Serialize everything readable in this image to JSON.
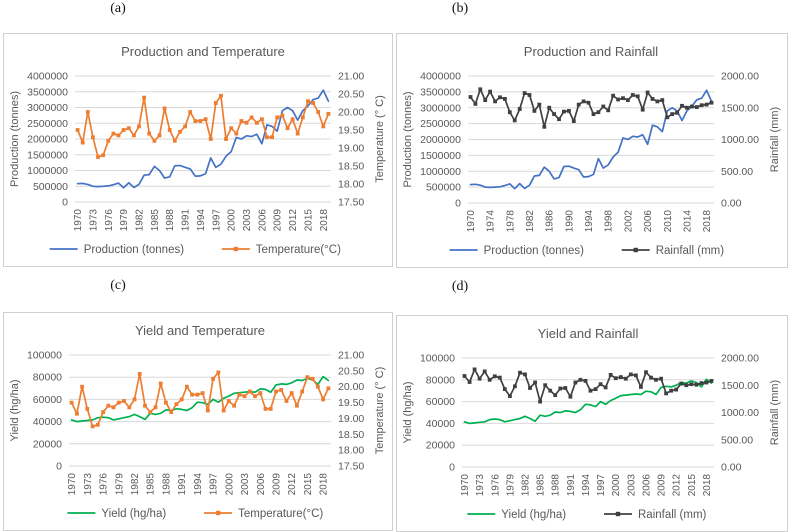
{
  "figure_labels": {
    "a": "(a)",
    "b": "(b)",
    "c": "(c)",
    "d": "(d)"
  },
  "colors": {
    "production": "#4472C4",
    "temperature": "#ED7D31",
    "yield": "#00B050",
    "rainfall": "#404040",
    "grid": "#D9D9D9",
    "text": "#595959",
    "panel_border": "#CFCFCF"
  },
  "years": [
    1970,
    1971,
    1972,
    1973,
    1974,
    1975,
    1976,
    1977,
    1978,
    1979,
    1980,
    1981,
    1982,
    1983,
    1984,
    1985,
    1986,
    1987,
    1988,
    1989,
    1990,
    1991,
    1992,
    1993,
    1994,
    1995,
    1996,
    1997,
    1998,
    1999,
    2000,
    2001,
    2002,
    2003,
    2004,
    2005,
    2006,
    2007,
    2008,
    2009,
    2010,
    2011,
    2012,
    2013,
    2014,
    2015,
    2016,
    2017,
    2018,
    2019
  ],
  "chart_data": [
    {
      "type": "line",
      "title": "Production and Temperature",
      "x_ticks": [
        1970,
        1973,
        1976,
        1979,
        1982,
        1985,
        1988,
        1991,
        1994,
        1997,
        2000,
        2003,
        2006,
        2009,
        2012,
        2015,
        2018
      ],
      "left_axis": {
        "label": "Production (tonnes)",
        "min": 0,
        "max": 4000000,
        "step": 500000,
        "decimals": 0
      },
      "right_axis": {
        "label": "Temperature (° C)",
        "min": 17.5,
        "max": 21,
        "step": 0.5,
        "decimals": 2
      },
      "legend_position": "bottom",
      "grid": true,
      "series": [
        {
          "name": "Production (tonnes)",
          "axis": "left",
          "color_key": "production",
          "marker": false,
          "values": [
            580000,
            590000,
            560000,
            500000,
            490000,
            500000,
            510000,
            550000,
            600000,
            450000,
            610000,
            460000,
            560000,
            850000,
            870000,
            1130000,
            1000000,
            760000,
            800000,
            1150000,
            1160000,
            1100000,
            1050000,
            820000,
            830000,
            900000,
            1400000,
            1100000,
            1200000,
            1450000,
            1600000,
            2050000,
            2000000,
            2100000,
            2080000,
            2150000,
            1850000,
            2450000,
            2400000,
            2250000,
            2900000,
            3000000,
            2900000,
            2600000,
            2900000,
            3050000,
            3250000,
            3300000,
            3550000,
            3200000
          ]
        },
        {
          "name": "Temperature(°C)",
          "axis": "right",
          "color_key": "temperature",
          "marker": true,
          "values": [
            19.5,
            19.15,
            20.0,
            19.3,
            18.75,
            18.8,
            19.2,
            19.4,
            19.35,
            19.5,
            19.55,
            19.35,
            19.6,
            20.4,
            19.4,
            19.2,
            19.35,
            20.1,
            19.5,
            19.2,
            19.45,
            19.6,
            20.0,
            19.75,
            19.75,
            19.8,
            19.25,
            20.25,
            20.45,
            19.25,
            19.55,
            19.4,
            19.75,
            19.7,
            19.85,
            19.7,
            19.8,
            19.3,
            19.3,
            19.85,
            19.9,
            19.55,
            19.8,
            19.4,
            19.85,
            20.3,
            20.25,
            20.0,
            19.6,
            19.95
          ]
        }
      ]
    },
    {
      "type": "line",
      "title": "Production and Rainfall",
      "x_ticks": [
        1970,
        1974,
        1978,
        1982,
        1986,
        1990,
        1994,
        1998,
        2002,
        2006,
        2010,
        2014,
        2018
      ],
      "left_axis": {
        "label": "Production (tonnes)",
        "min": 0,
        "max": 4000000,
        "step": 500000,
        "decimals": 0
      },
      "right_axis": {
        "label": "Rainfall (mm)",
        "min": 0,
        "max": 2000,
        "step": 500,
        "decimals": 2
      },
      "legend_position": "bottom",
      "grid": true,
      "series": [
        {
          "name": "Production (tonnes)",
          "axis": "left",
          "color_key": "production",
          "marker": false,
          "values": [
            580000,
            590000,
            560000,
            500000,
            490000,
            500000,
            510000,
            550000,
            600000,
            450000,
            610000,
            460000,
            560000,
            850000,
            870000,
            1130000,
            1000000,
            760000,
            800000,
            1150000,
            1160000,
            1100000,
            1050000,
            820000,
            830000,
            900000,
            1400000,
            1100000,
            1200000,
            1450000,
            1600000,
            2050000,
            2000000,
            2100000,
            2080000,
            2150000,
            1850000,
            2450000,
            2400000,
            2250000,
            2900000,
            3000000,
            2900000,
            2600000,
            2900000,
            3050000,
            3250000,
            3300000,
            3550000,
            3200000
          ]
        },
        {
          "name": "Rainfall (mm)",
          "axis": "right",
          "color_key": "rainfall",
          "marker": true,
          "values": [
            1670,
            1560,
            1790,
            1620,
            1755,
            1600,
            1665,
            1640,
            1430,
            1300,
            1480,
            1730,
            1700,
            1450,
            1550,
            1200,
            1500,
            1400,
            1320,
            1440,
            1450,
            1290,
            1550,
            1600,
            1580,
            1400,
            1430,
            1520,
            1460,
            1690,
            1630,
            1650,
            1620,
            1700,
            1680,
            1470,
            1740,
            1640,
            1600,
            1620,
            1350,
            1400,
            1420,
            1530,
            1500,
            1520,
            1510,
            1540,
            1550,
            1580
          ]
        }
      ]
    },
    {
      "type": "line",
      "title": "Yield and Temperature",
      "x_ticks": [
        1970,
        1973,
        1976,
        1979,
        1982,
        1985,
        1988,
        1991,
        1994,
        1997,
        2000,
        2003,
        2006,
        2009,
        2012,
        2015,
        2018
      ],
      "left_axis": {
        "label": "Yield (hg/ha)",
        "min": 0,
        "max": 100000,
        "step": 20000,
        "decimals": 0
      },
      "right_axis": {
        "label": "Temperature (° C)",
        "min": 17.5,
        "max": 21,
        "step": 0.5,
        "decimals": 2
      },
      "legend_position": "bottom",
      "grid": true,
      "series": [
        {
          "name": "Yield (hg/ha)",
          "axis": "left",
          "color_key": "yield",
          "marker": false,
          "values": [
            41500,
            40000,
            40500,
            41000,
            41500,
            43500,
            44000,
            43500,
            41500,
            42500,
            43500,
            44500,
            46500,
            44500,
            42000,
            47500,
            46500,
            47500,
            50500,
            50000,
            51500,
            51000,
            50000,
            52500,
            57500,
            57000,
            55500,
            60000,
            57500,
            61000,
            63000,
            65500,
            66000,
            66500,
            67000,
            66500,
            69500,
            69000,
            66500,
            73000,
            74000,
            73500,
            75000,
            77500,
            77000,
            79000,
            77500,
            73500,
            80500,
            77000
          ]
        },
        {
          "name": "Temperature(°C)",
          "axis": "right",
          "color_key": "temperature",
          "marker": true,
          "values": [
            19.5,
            19.15,
            20.0,
            19.3,
            18.75,
            18.8,
            19.2,
            19.4,
            19.35,
            19.5,
            19.55,
            19.35,
            19.6,
            20.4,
            19.4,
            19.2,
            19.35,
            20.1,
            19.5,
            19.2,
            19.45,
            19.6,
            20.0,
            19.75,
            19.75,
            19.8,
            19.25,
            20.25,
            20.45,
            19.25,
            19.55,
            19.4,
            19.75,
            19.7,
            19.85,
            19.7,
            19.8,
            19.3,
            19.3,
            19.85,
            19.9,
            19.55,
            19.8,
            19.4,
            19.85,
            20.3,
            20.25,
            20.0,
            19.6,
            19.95
          ]
        }
      ]
    },
    {
      "type": "line",
      "title": "Yield and Rainfall",
      "x_ticks": [
        1970,
        1973,
        1976,
        1979,
        1982,
        1985,
        1988,
        1991,
        1994,
        1997,
        2000,
        2003,
        2006,
        2009,
        2012,
        2015,
        2018
      ],
      "left_axis": {
        "label": "Yield (hg/ha)",
        "min": 0,
        "max": 100000,
        "step": 20000,
        "decimals": 0
      },
      "right_axis": {
        "label": "Rainfall (mm)",
        "min": 0,
        "max": 2000,
        "step": 500,
        "decimals": 2
      },
      "legend_position": "bottom",
      "grid": true,
      "series": [
        {
          "name": "Yield (hg/ha)",
          "axis": "left",
          "color_key": "yield",
          "marker": false,
          "values": [
            41500,
            40000,
            40500,
            41000,
            41500,
            43500,
            44000,
            43500,
            41500,
            42500,
            43500,
            44500,
            46500,
            44500,
            42000,
            47500,
            46500,
            47500,
            50500,
            50000,
            51500,
            51000,
            50000,
            52500,
            57500,
            57000,
            55500,
            60000,
            57500,
            61000,
            63000,
            65500,
            66000,
            66500,
            67000,
            66500,
            69500,
            69000,
            66500,
            73000,
            74000,
            73500,
            75000,
            77500,
            77000,
            79000,
            77500,
            73500,
            80500,
            77000
          ]
        },
        {
          "name": "Rainfall (mm)",
          "axis": "right",
          "color_key": "rainfall",
          "marker": true,
          "values": [
            1670,
            1560,
            1790,
            1620,
            1755,
            1600,
            1665,
            1640,
            1430,
            1300,
            1480,
            1730,
            1700,
            1450,
            1550,
            1200,
            1500,
            1400,
            1320,
            1440,
            1450,
            1290,
            1550,
            1600,
            1580,
            1400,
            1430,
            1520,
            1460,
            1690,
            1630,
            1650,
            1620,
            1700,
            1680,
            1470,
            1740,
            1640,
            1600,
            1620,
            1350,
            1400,
            1420,
            1530,
            1500,
            1520,
            1510,
            1540,
            1550,
            1580
          ]
        }
      ]
    }
  ]
}
